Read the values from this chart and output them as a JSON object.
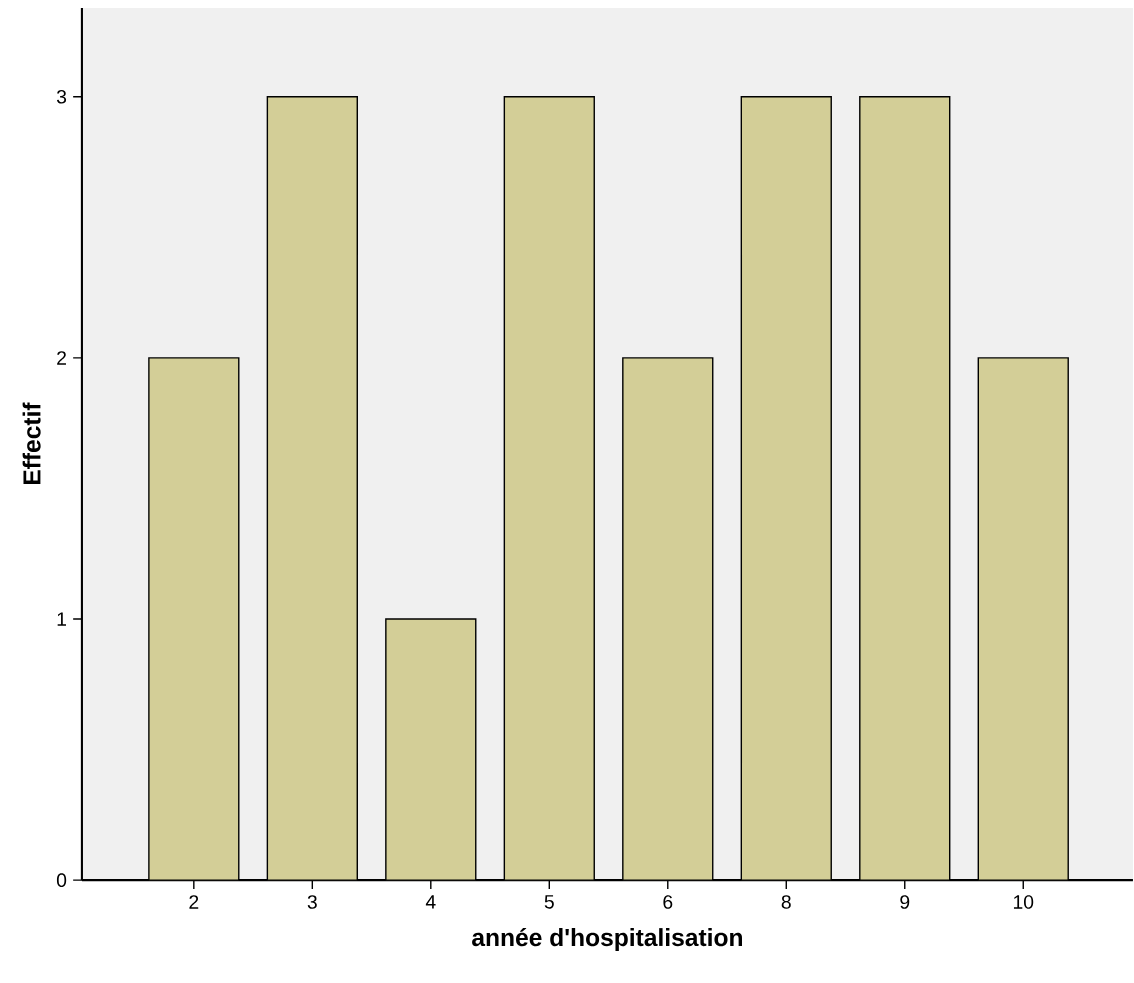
{
  "chart_data": {
    "type": "bar",
    "xlabel": "année d'hospitalisation",
    "ylabel": "Effectif",
    "categories": [
      "2",
      "3",
      "4",
      "5",
      "6",
      "8",
      "9",
      "10"
    ],
    "values": [
      2,
      3,
      1,
      3,
      2,
      3,
      3,
      2
    ],
    "color": "#d3ce97",
    "ylim": [
      0,
      3.34
    ],
    "yticks": [
      0,
      1,
      2,
      3
    ]
  }
}
